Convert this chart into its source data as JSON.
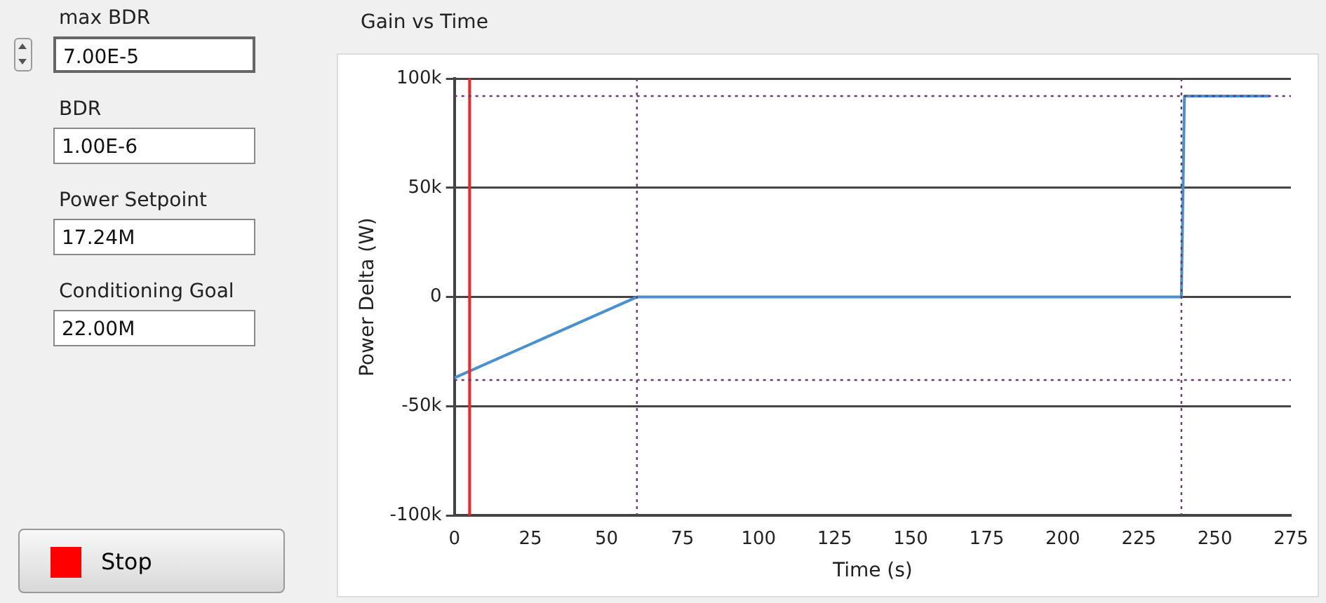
{
  "chart_data": [
    {
      "type": "other",
      "annotations": [
        "max BDR",
        "7.00E-5",
        "BDR",
        "1.00E-6",
        "Power Setpoint",
        "17.24M",
        "Conditioning Goal",
        "22.00M",
        "Stop"
      ]
    },
    {
      "type": "line",
      "title": "Gain vs Time",
      "xlabel": "Time (s)",
      "ylabel": "Power Delta (W)",
      "x": [
        0,
        60,
        239,
        240,
        268
      ],
      "series": [
        {
          "color": "#4a90d0",
          "values": [
            -37000,
            0,
            0,
            92000,
            92000
          ]
        }
      ],
      "xlim": [
        0,
        275
      ],
      "xticks": [
        0,
        25,
        50,
        75,
        100,
        125,
        150,
        175,
        200,
        225,
        250,
        275
      ],
      "ylim": [
        -100000,
        100000
      ],
      "yticks": [
        {
          "value": -100000,
          "label": "-100k"
        },
        {
          "value": -50000,
          "label": "-50k"
        },
        0,
        {
          "value": 50000,
          "label": "50k"
        },
        {
          "value": 100000,
          "label": "100k"
        }
      ],
      "grid": "y",
      "marker": "none",
      "line_style": "solid",
      "ref_lines": [
        {
          "axis": "x",
          "value": 5,
          "color": "#ff2020",
          "line_style": "solid"
        },
        {
          "axis": "x",
          "value": 60,
          "color": "#6a3a6a",
          "line_style": "dotted"
        },
        {
          "axis": "x",
          "value": 239,
          "color": "#6a3a6a",
          "line_style": "dotted"
        },
        {
          "axis": "y",
          "value": 92000,
          "color": "#6a3a6a",
          "line_style": "dotted"
        },
        {
          "axis": "y",
          "value": -38000,
          "color": "#6a3a6a",
          "line_style": "dotted"
        }
      ]
    }
  ]
}
